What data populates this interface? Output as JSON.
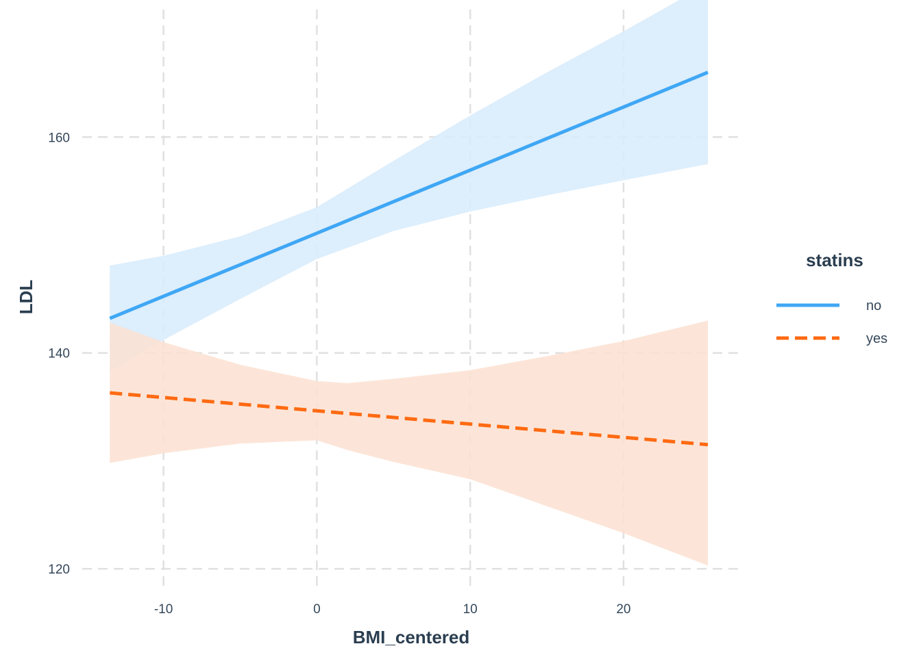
{
  "chart_data": {
    "type": "line",
    "title": "",
    "xlabel": "BMI_centered",
    "ylabel": "LDL",
    "xlim": [
      -15.3,
      27.6
    ],
    "ylim": [
      118.8,
      170.8
    ],
    "xticks": [
      -10,
      0,
      10,
      20
    ],
    "yticks": [
      120,
      140,
      160
    ],
    "xtick_labels": [
      "-10",
      "0",
      "10",
      "20"
    ],
    "ytick_labels": [
      "120",
      "140",
      "160"
    ],
    "grid": true,
    "legend": {
      "title": "statins",
      "position": "right"
    },
    "series": [
      {
        "name": "no",
        "color": "#3fa7f5",
        "band_color": "#d7ebfc",
        "line_style": "solid",
        "x": [
          -13.5,
          25.5
        ],
        "y": [
          143.2,
          166.0
        ],
        "band": {
          "x": [
            -13.5,
            -10,
            -5,
            0,
            5,
            10,
            15,
            20,
            25.5
          ],
          "lower": [
            138.3,
            141.2,
            145.0,
            148.7,
            151.3,
            153.1,
            154.6,
            156.0,
            157.5
          ],
          "upper": [
            148.1,
            149.0,
            150.8,
            153.5,
            157.8,
            162.0,
            166.0,
            169.8,
            174.2
          ]
        }
      },
      {
        "name": "yes",
        "color": "#ff6a12",
        "band_color": "#fce0d1",
        "line_style": "dashed",
        "x": [
          -13.5,
          25.5
        ],
        "y": [
          136.3,
          131.5
        ],
        "band": {
          "x": [
            -13.5,
            -10,
            -5,
            0,
            2,
            5,
            10,
            15,
            20,
            25.5
          ],
          "lower": [
            129.8,
            130.7,
            131.6,
            131.9,
            131.0,
            129.9,
            128.3,
            125.8,
            123.3,
            120.3
          ],
          "upper": [
            142.8,
            141.0,
            138.9,
            137.4,
            137.2,
            137.6,
            138.4,
            139.7,
            141.1,
            143.0
          ]
        }
      }
    ]
  }
}
